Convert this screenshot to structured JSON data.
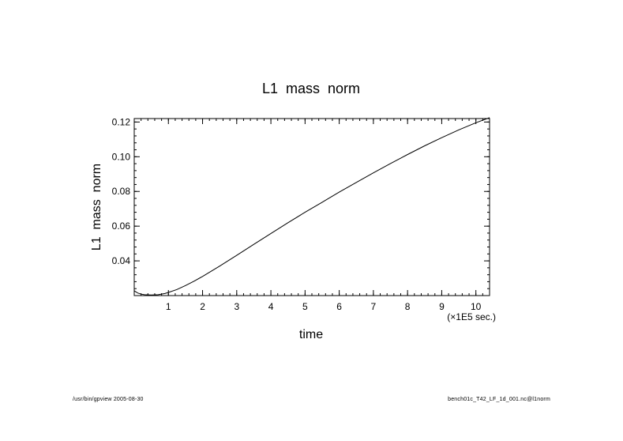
{
  "chart_data": {
    "type": "line",
    "title": "L1  mass  norm",
    "xlabel": "time",
    "ylabel": "L1  mass  norm",
    "x_unit_label": "(×1E5 sec.)",
    "xlim": [
      0,
      10.4
    ],
    "ylim": [
      0.02,
      0.122
    ],
    "x_ticks": [
      1,
      2,
      3,
      4,
      5,
      6,
      7,
      8,
      9,
      10
    ],
    "x_tick_labels": [
      "1",
      "2",
      "3",
      "4",
      "5",
      "6",
      "7",
      "8",
      "9",
      "10"
    ],
    "y_ticks": [
      0.04,
      0.06,
      0.08,
      0.1,
      0.12
    ],
    "y_tick_labels": [
      "0.04",
      "0.06",
      "0.08",
      "0.10",
      "0.12"
    ],
    "grid": false,
    "legend": "none",
    "line_color": "#000000",
    "series": [
      {
        "x": [
          0,
          0.1,
          0.2,
          0.3,
          0.5,
          0.7,
          0.9,
          1.0,
          1.25,
          1.5,
          1.75,
          2.0,
          2.5,
          3.0,
          3.5,
          4.0,
          4.5,
          5.0,
          5.5,
          6.0,
          6.5,
          7.0,
          7.5,
          8.0,
          8.5,
          9.0,
          9.5,
          10.0,
          10.4
        ],
        "y": [
          0.0228,
          0.0215,
          0.0208,
          0.0205,
          0.0203,
          0.0205,
          0.0212,
          0.0218,
          0.0235,
          0.0258,
          0.0283,
          0.031,
          0.037,
          0.0432,
          0.0495,
          0.0558,
          0.062,
          0.068,
          0.0738,
          0.0796,
          0.0852,
          0.0907,
          0.0961,
          0.1013,
          0.1063,
          0.111,
          0.1155,
          0.1196,
          0.1225
        ]
      }
    ]
  },
  "footer": {
    "left": "/usr/bin/gpview  2005-08-30",
    "right": "bench01c_T42_LF_1d_001.nc@l1norm"
  }
}
